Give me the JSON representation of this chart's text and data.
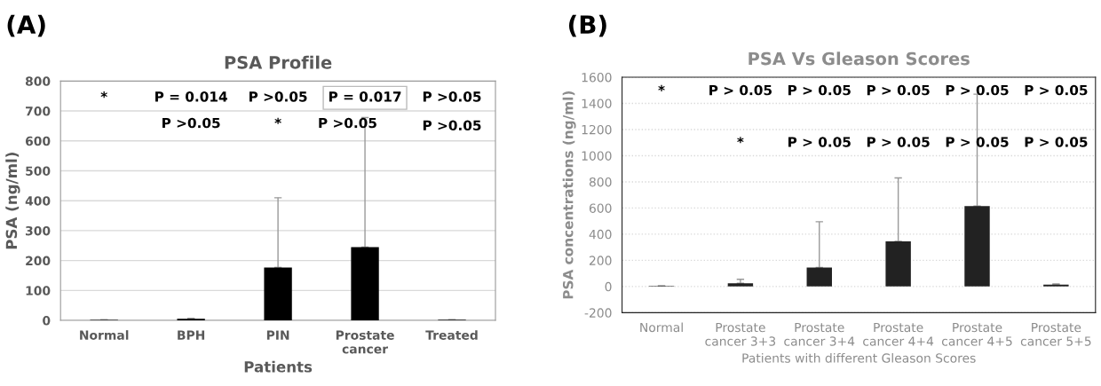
{
  "chart_data": [
    {
      "type": "bar",
      "title": "PSA Profile",
      "xlabel": "Patients",
      "ylabel": "PSA (ng/ml)",
      "categories": [
        "Normal",
        "BPH",
        "PIN",
        "Prostate\ncancer",
        "Treated"
      ],
      "values": [
        2,
        5,
        177,
        245,
        2
      ],
      "color": "#000000",
      "errors": [
        null,
        [
          5,
          7
        ],
        [
          177,
          410
        ],
        [
          245,
          678
        ],
        null
      ],
      "ylim": [
        0,
        800
      ],
      "yticks": [
        0,
        100,
        200,
        300,
        400,
        500,
        600,
        700,
        800
      ],
      "grid": "y",
      "annotations": [
        "(A)",
        "*",
        "P = 0.014",
        "P >0.05",
        "P = 0.017",
        "P >0.05",
        "P >0.05",
        "*",
        "P >0.05",
        "P >0.05"
      ]
    },
    {
      "type": "bar",
      "title": "PSA Vs Gleason Scores",
      "xlabel": "Patients with different Gleason Scores",
      "ylabel": "PSA concentrations (ng/ml)",
      "categories": [
        "Normal",
        "Prostate\ncancer 3+3",
        "Prostate\ncancer 3+4",
        "Prostate\ncancer 4+4",
        "Prostate\ncancer 4+5",
        "Prostate\ncancer 5+5"
      ],
      "values": [
        5,
        25,
        145,
        345,
        615,
        15
      ],
      "color": "#222222",
      "errors": [
        null,
        [
          25,
          55
        ],
        [
          145,
          495
        ],
        [
          345,
          830
        ],
        [
          615,
          1470
        ],
        [
          15,
          20
        ]
      ],
      "ylim": [
        -200,
        1600
      ],
      "yticks": [
        -200,
        0,
        200,
        400,
        600,
        800,
        1000,
        1200,
        1400,
        1600
      ],
      "grid": "y",
      "annotations": [
        "(B)",
        "*",
        "P > 0.05",
        "P > 0.05",
        "P > 0.05",
        "P > 0.05",
        "P > 0.05",
        "*",
        "P > 0.05",
        "P > 0.05",
        "P > 0.05",
        "P > 0.05"
      ]
    }
  ]
}
